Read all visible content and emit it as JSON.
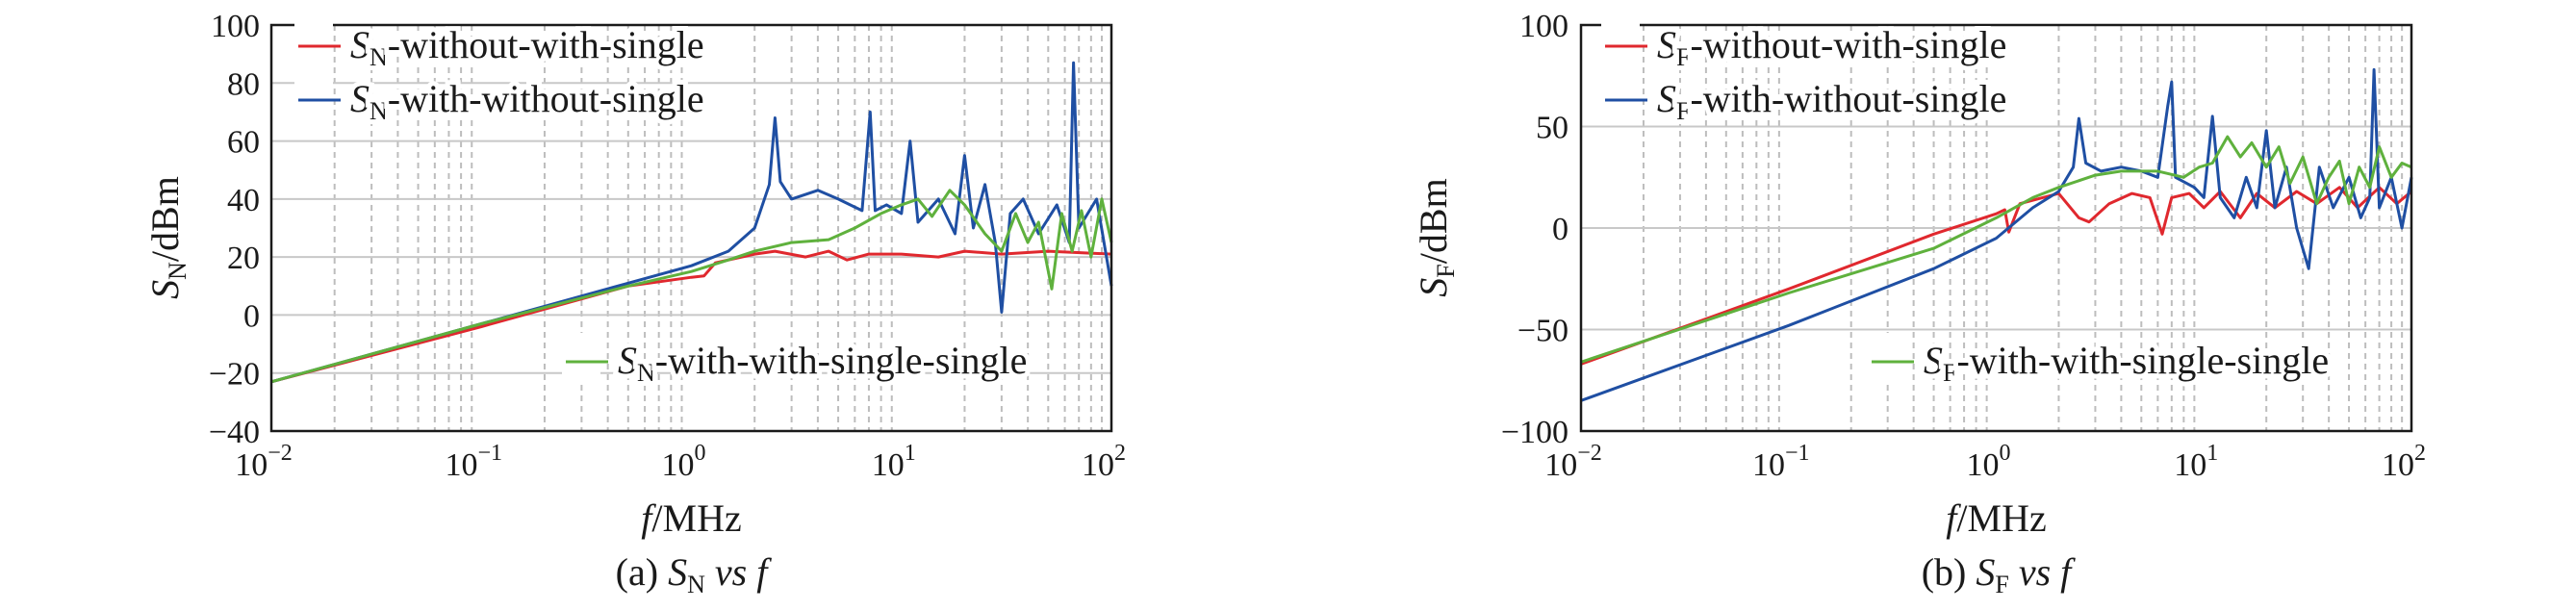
{
  "colors": {
    "red": "#e0282e",
    "blue": "#1f4fa3",
    "green": "#5fb13d"
  },
  "chart_data": [
    {
      "type": "line",
      "xscale": "log",
      "x_ticks": [
        "10",
        "10",
        "10",
        "10",
        "10"
      ],
      "x_tick_exp": [
        "−2",
        "−1",
        "0",
        "1",
        "2"
      ],
      "xlim": [
        0.01,
        100
      ],
      "ylim": [
        -40,
        100
      ],
      "y_ticks": [
        "100",
        "80",
        "60",
        "40",
        "20",
        "0",
        "−20",
        "−40"
      ],
      "y_tick_values": [
        100,
        80,
        60,
        40,
        20,
        0,
        -20,
        -40
      ],
      "grid": {
        "vertical": "dashed",
        "horizontal": "solid"
      },
      "xlabel": {
        "var": "f",
        "rest": "/MHz"
      },
      "ylabel": {
        "var": "S",
        "sub": "N",
        "rest": "/dBm"
      },
      "caption": {
        "prefix": "(a) ",
        "var": "S",
        "sub": "N",
        "mid": " vs ",
        "end": "f"
      },
      "series": [
        {
          "name": "SN-without-with-single",
          "legend": {
            "var": "S",
            "sub": "N",
            "rest": "-without-with-single"
          },
          "color_key": "red",
          "points": [
            [
              0.01,
              -23
            ],
            [
              0.1,
              -4
            ],
            [
              0.5,
              10
            ],
            [
              1.0,
              13
            ],
            [
              1.15,
              13.5
            ],
            [
              1.3,
              18
            ],
            [
              2.0,
              21
            ],
            [
              2.5,
              22
            ],
            [
              3.5,
              20
            ],
            [
              4.5,
              22
            ],
            [
              5.5,
              19
            ],
            [
              7,
              21
            ],
            [
              10,
              21
            ],
            [
              15,
              20
            ],
            [
              20,
              22
            ],
            [
              30,
              21
            ],
            [
              50,
              22
            ],
            [
              100,
              21
            ]
          ]
        },
        {
          "name": "SN-with-without-single",
          "legend": {
            "var": "S",
            "sub": "N",
            "rest": "-with-without-single"
          },
          "color_key": "blue",
          "points": [
            [
              0.01,
              -23
            ],
            [
              0.1,
              -3
            ],
            [
              0.5,
              11
            ],
            [
              1.0,
              17
            ],
            [
              1.5,
              22
            ],
            [
              2.0,
              30
            ],
            [
              2.35,
              45
            ],
            [
              2.5,
              68
            ],
            [
              2.65,
              46
            ],
            [
              3.0,
              40
            ],
            [
              4.0,
              43
            ],
            [
              5.0,
              40
            ],
            [
              6.5,
              36
            ],
            [
              7.1,
              70
            ],
            [
              7.5,
              36
            ],
            [
              8.5,
              38
            ],
            [
              10,
              35
            ],
            [
              11,
              60
            ],
            [
              12,
              32
            ],
            [
              15,
              40
            ],
            [
              18,
              28
            ],
            [
              20,
              55
            ],
            [
              22,
              30
            ],
            [
              25,
              45
            ],
            [
              28,
              25
            ],
            [
              30,
              1
            ],
            [
              33,
              35
            ],
            [
              38,
              40
            ],
            [
              45,
              28
            ],
            [
              55,
              38
            ],
            [
              63,
              25
            ],
            [
              66,
              87
            ],
            [
              70,
              30
            ],
            [
              85,
              40
            ],
            [
              100,
              10
            ]
          ]
        },
        {
          "name": "SN-with-with-single-single",
          "legend": {
            "var": "S",
            "sub": "N",
            "rest": "-with-with-single-single"
          },
          "color_key": "green",
          "points": [
            [
              0.01,
              -23
            ],
            [
              0.1,
              -3
            ],
            [
              0.5,
              10
            ],
            [
              1.0,
              15
            ],
            [
              1.5,
              19
            ],
            [
              2.0,
              22
            ],
            [
              3.0,
              25
            ],
            [
              4.5,
              26
            ],
            [
              6.0,
              30
            ],
            [
              8.0,
              35
            ],
            [
              10,
              38
            ],
            [
              12,
              40
            ],
            [
              14,
              34
            ],
            [
              17,
              43
            ],
            [
              20,
              38
            ],
            [
              25,
              28
            ],
            [
              30,
              22
            ],
            [
              35,
              35
            ],
            [
              40,
              25
            ],
            [
              45,
              32
            ],
            [
              52,
              9
            ],
            [
              58,
              35
            ],
            [
              65,
              22
            ],
            [
              72,
              36
            ],
            [
              80,
              20
            ],
            [
              90,
              40
            ],
            [
              100,
              25
            ]
          ]
        }
      ]
    },
    {
      "type": "line",
      "xscale": "log",
      "x_ticks": [
        "10",
        "10",
        "10",
        "10",
        "10"
      ],
      "x_tick_exp": [
        "−2",
        "−1",
        "0",
        "1",
        "2"
      ],
      "xlim": [
        0.01,
        100
      ],
      "ylim": [
        -100,
        100
      ],
      "y_ticks": [
        "100",
        "50",
        "0",
        "−50",
        "−100"
      ],
      "y_tick_values": [
        100,
        50,
        0,
        -50,
        -100
      ],
      "grid": {
        "vertical": "dashed",
        "horizontal": "solid"
      },
      "xlabel": {
        "var": "f",
        "rest": "/MHz"
      },
      "ylabel": {
        "var": "S",
        "sub": "F",
        "rest": "/dBm"
      },
      "caption": {
        "prefix": "(b) ",
        "var": "S",
        "sub": "F",
        "mid": " vs ",
        "end": "f"
      },
      "series": [
        {
          "name": "SF-without-with-single",
          "legend": {
            "var": "S",
            "sub": "F",
            "rest": "-without-with-single"
          },
          "color_key": "red",
          "points": [
            [
              0.01,
              -67
            ],
            [
              0.1,
              -30
            ],
            [
              0.5,
              -3
            ],
            [
              1.0,
              7
            ],
            [
              1.1,
              9
            ],
            [
              1.15,
              -2
            ],
            [
              1.3,
              12
            ],
            [
              2.0,
              17
            ],
            [
              2.5,
              5
            ],
            [
              2.8,
              3
            ],
            [
              3.5,
              12
            ],
            [
              4.5,
              17
            ],
            [
              5.5,
              15
            ],
            [
              6.3,
              -3
            ],
            [
              7,
              15
            ],
            [
              8.5,
              17
            ],
            [
              10,
              10
            ],
            [
              12,
              18
            ],
            [
              15,
              5
            ],
            [
              18,
              17
            ],
            [
              22,
              10
            ],
            [
              28,
              18
            ],
            [
              35,
              12
            ],
            [
              45,
              20
            ],
            [
              55,
              10
            ],
            [
              70,
              20
            ],
            [
              85,
              12
            ],
            [
              100,
              18
            ]
          ]
        },
        {
          "name": "SF-with-without-single",
          "legend": {
            "var": "S",
            "sub": "F",
            "rest": "-with-without-single"
          },
          "color_key": "blue",
          "points": [
            [
              0.01,
              -85
            ],
            [
              0.1,
              -48
            ],
            [
              0.5,
              -20
            ],
            [
              1.0,
              -5
            ],
            [
              1.5,
              10
            ],
            [
              2.0,
              18
            ],
            [
              2.35,
              30
            ],
            [
              2.5,
              54
            ],
            [
              2.7,
              32
            ],
            [
              3.2,
              28
            ],
            [
              4.0,
              30
            ],
            [
              5.0,
              28
            ],
            [
              6.0,
              25
            ],
            [
              6.7,
              60
            ],
            [
              7.0,
              72
            ],
            [
              7.3,
              25
            ],
            [
              9,
              20
            ],
            [
              10,
              15
            ],
            [
              11,
              55
            ],
            [
              12,
              15
            ],
            [
              14,
              5
            ],
            [
              16,
              25
            ],
            [
              18,
              10
            ],
            [
              20,
              48
            ],
            [
              22,
              10
            ],
            [
              25,
              30
            ],
            [
              28,
              0
            ],
            [
              32,
              -20
            ],
            [
              36,
              30
            ],
            [
              42,
              10
            ],
            [
              50,
              25
            ],
            [
              57,
              5
            ],
            [
              63,
              15
            ],
            [
              66,
              78
            ],
            [
              70,
              10
            ],
            [
              80,
              25
            ],
            [
              90,
              0
            ],
            [
              100,
              25
            ]
          ]
        },
        {
          "name": "SF-with-with-single-single",
          "legend": {
            "var": "S",
            "sub": "F",
            "rest": "-with-with-single-single"
          },
          "color_key": "green",
          "points": [
            [
              0.01,
              -66
            ],
            [
              0.1,
              -32
            ],
            [
              0.5,
              -10
            ],
            [
              1.0,
              5
            ],
            [
              1.5,
              15
            ],
            [
              2.0,
              20
            ],
            [
              3.0,
              26
            ],
            [
              4.0,
              28
            ],
            [
              6.0,
              28
            ],
            [
              8.0,
              25
            ],
            [
              9.5,
              30
            ],
            [
              11,
              32
            ],
            [
              13,
              45
            ],
            [
              15,
              35
            ],
            [
              17,
              42
            ],
            [
              20,
              30
            ],
            [
              23,
              40
            ],
            [
              26,
              22
            ],
            [
              30,
              35
            ],
            [
              35,
              12
            ],
            [
              40,
              25
            ],
            [
              45,
              33
            ],
            [
              50,
              12
            ],
            [
              56,
              30
            ],
            [
              63,
              20
            ],
            [
              70,
              40
            ],
            [
              80,
              25
            ],
            [
              90,
              32
            ],
            [
              100,
              30
            ]
          ]
        }
      ]
    }
  ]
}
